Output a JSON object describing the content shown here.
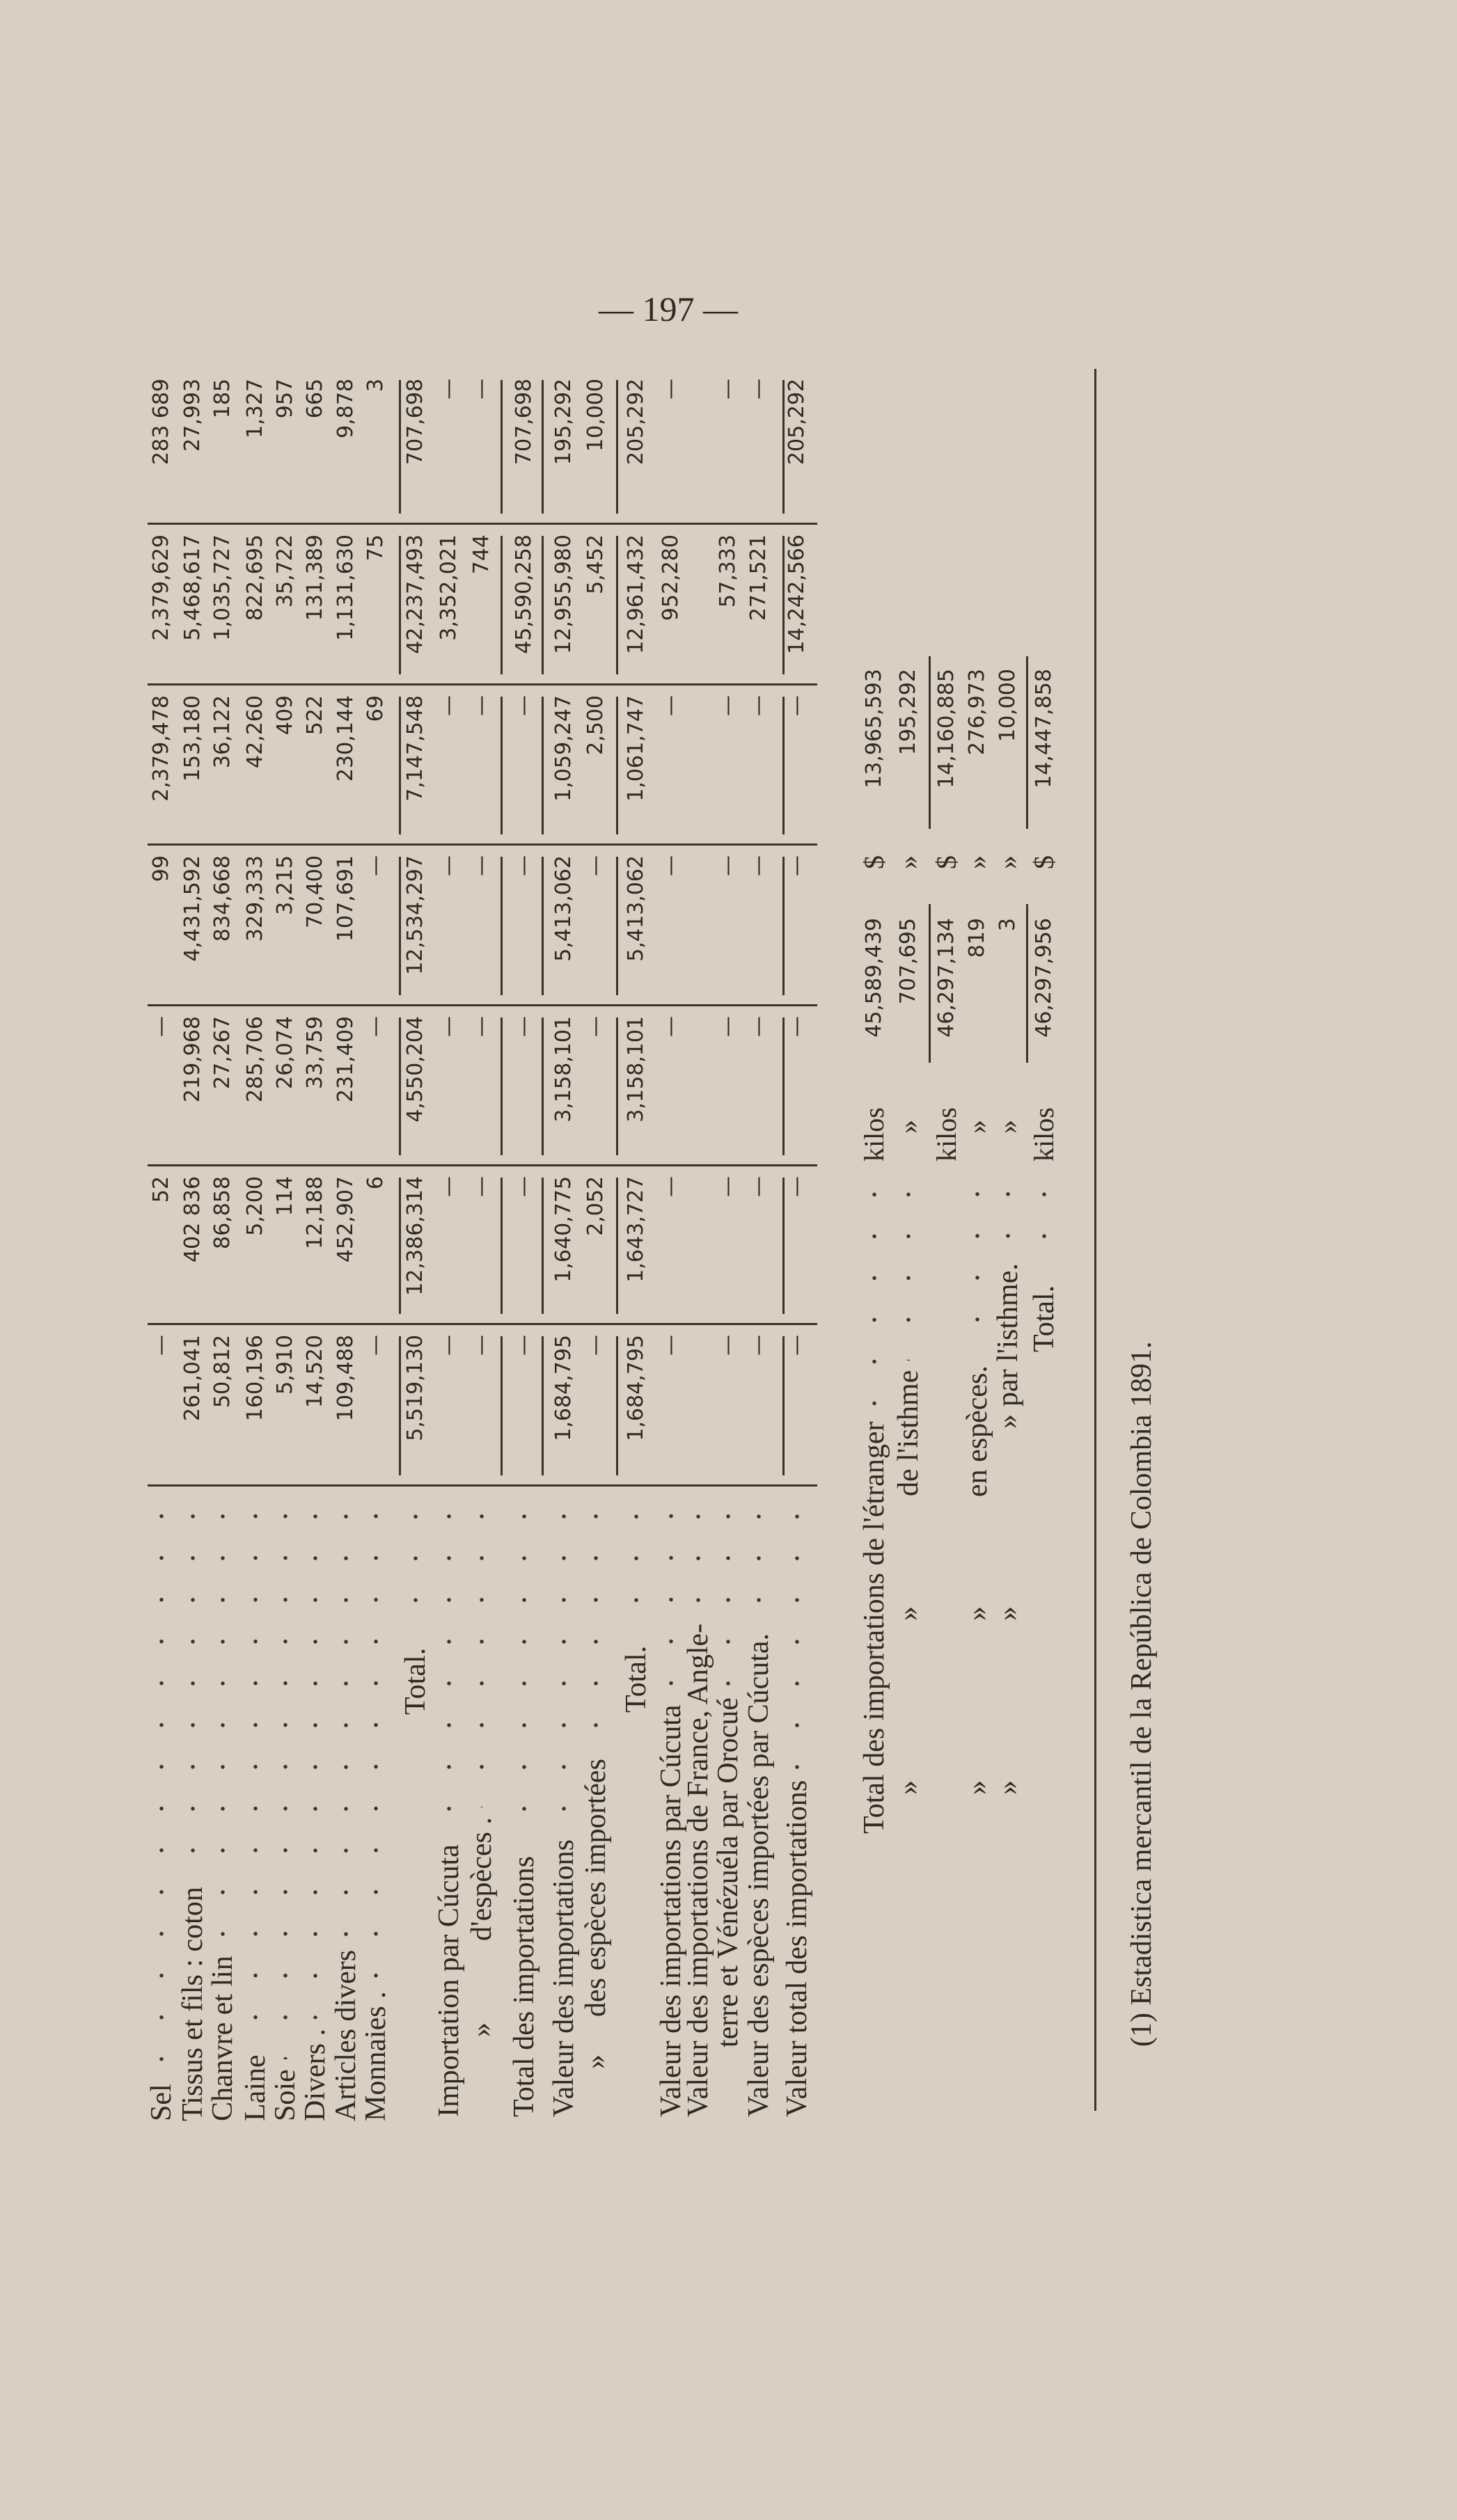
{
  "page_number": "— 197 —",
  "table": {
    "rows": [
      {
        "label": [
          "Sel"
        ],
        "values": [
          "—",
          "52",
          "—",
          "99",
          "2,379,478",
          "2,379,629",
          "283 689"
        ]
      },
      {
        "label": [
          "Tissus et fils : coton"
        ],
        "values": [
          "261,041",
          "402 836",
          "219,968",
          "4,431,592",
          "153,180",
          "5,468,617",
          "27,993"
        ]
      },
      {
        "label": [
          "Chanvre et lin"
        ],
        "values": [
          "50,812",
          "86,858",
          "27,267",
          "834,668",
          "36,122",
          "1,035,727",
          "185"
        ]
      },
      {
        "label": [
          "Laine"
        ],
        "values": [
          "160,196",
          "5,200",
          "285,706",
          "329,333",
          "42,260",
          "822,695",
          "1,327"
        ]
      },
      {
        "label": [
          "Soie"
        ],
        "values": [
          "5,910",
          "114",
          "26,074",
          "3,215",
          "409",
          "35,722",
          "957"
        ]
      },
      {
        "label": [
          "Divers ."
        ],
        "values": [
          "14,520",
          "12,188",
          "33,759",
          "70,400",
          "522",
          "131,389",
          "665"
        ]
      },
      {
        "label": [
          "Articles divers"
        ],
        "values": [
          "109,488",
          "452,907",
          "231,409",
          "107,691",
          "230,144",
          "1,131,630",
          "9,878"
        ]
      },
      {
        "label": [
          "Monnaies ."
        ],
        "values": [
          "—",
          "6",
          "—",
          "—",
          "69",
          "75",
          "3"
        ]
      },
      {
        "label": [
          "Total."
        ],
        "values": [
          "5,519,130",
          "12,386,314",
          "4,550,204",
          "12,534,297",
          "7,147,548",
          "42,237,493",
          "707,698"
        ]
      },
      {
        "label": [
          "Importation par Cúcuta"
        ],
        "values": [
          "—",
          "—",
          "—",
          "—",
          "—",
          "3,352,021",
          "—"
        ]
      },
      {
        "label": [
          "»",
          "d'espèces ."
        ],
        "values": [
          "—",
          "—",
          "—",
          "—",
          "—",
          "744",
          "—"
        ]
      },
      {
        "label": [
          "Total des importations"
        ],
        "values": [
          "—",
          "—",
          "—",
          "—",
          "—",
          "45,590,258",
          "707,698"
        ]
      },
      {
        "label": [
          "Valeur des importations"
        ],
        "values": [
          "1,684,795",
          "1,640,775",
          "3,158,101",
          "5,413,062",
          "1,059,247",
          "12,955,980",
          "195,292"
        ]
      },
      {
        "label": [
          "»",
          "des espèces importées"
        ],
        "values": [
          "—",
          "2,052",
          "—",
          "—",
          "2,500",
          "5,452",
          "10,000"
        ]
      },
      {
        "label": [
          "Total."
        ],
        "values": [
          "1,684,795",
          "1,643,727",
          "3,158,101",
          "5,413,062",
          "1,061,747",
          "12,961,432",
          "205,292"
        ]
      },
      {
        "label": [
          "Valeur des importations par Cúcuta"
        ],
        "values": [
          "—",
          "—",
          "—",
          "—",
          "—",
          "952,280",
          "—"
        ]
      },
      {
        "label": [
          "Valeur des importations de France, Angle-"
        ],
        "values": [
          "",
          "",
          "",
          "",
          "",
          "",
          ""
        ]
      },
      {
        "label": [
          "terre et Vénézuéla par Orocué"
        ],
        "values": [
          "—",
          "—",
          "—",
          "—",
          "—",
          "57,333",
          "—"
        ]
      },
      {
        "label": [
          "Valeur des espèces importées par Cúcuta."
        ],
        "values": [
          "—",
          "—",
          "—",
          "—",
          "—",
          "271,521",
          "—"
        ]
      },
      {
        "label": [
          "Valeur total des importations"
        ],
        "values": [
          "—",
          "—",
          "—",
          "—",
          "—",
          "14,242,566",
          "205,292"
        ]
      }
    ]
  },
  "summary": {
    "rows": [
      {
        "label": [
          "Total des importations de l'étranger"
        ],
        "kilo_unit": "kilos",
        "kilos": "45,589,439",
        "dollar_unit": "$",
        "dollars": "13,965,593"
      },
      {
        "label": [
          "»",
          "»",
          "de l'isthme"
        ],
        "kilo_unit": "»",
        "kilos": "707,695",
        "dollar_unit": "»",
        "dollars": "195,292"
      },
      {
        "label": [],
        "kilo_unit": "kilos",
        "kilos": "46,297,134",
        "dollar_unit": "$",
        "dollars": "14,160,885"
      },
      {
        "label": [
          "»",
          "»",
          "en espèces."
        ],
        "kilo_unit": "»",
        "kilos": "819",
        "dollar_unit": "»",
        "dollars": "276,973"
      },
      {
        "label": [
          "»",
          "»",
          "»",
          "par l'isthme."
        ],
        "kilo_unit": "»",
        "kilos": "3",
        "dollar_unit": "»",
        "dollars": "10,000"
      },
      {
        "label": [
          "Total."
        ],
        "kilo_unit": "kilos",
        "kilos": "46,297,956",
        "dollar_unit": "$",
        "dollars": "14,447,858"
      }
    ]
  },
  "footnote": "(1) Estadistica mercantil de la República de Colombia 1891.",
  "colors": {
    "paper": "#d9d0c3",
    "ink": "#2f2a25"
  }
}
